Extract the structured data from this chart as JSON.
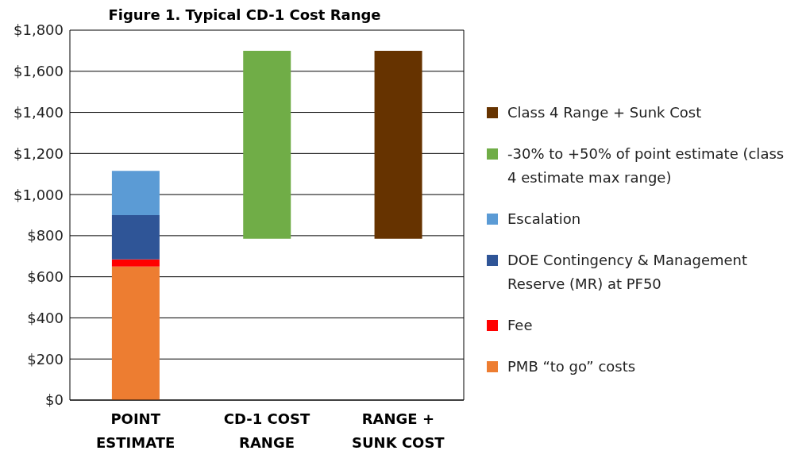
{
  "chart_data": {
    "type": "bar",
    "title": "Figure 1. Typical CD-1 Cost Range",
    "categories": [
      "POINT ESTIMATE",
      "CD-1 COST RANGE",
      "RANGE + SUNK COST"
    ],
    "stacked": true,
    "series": [
      {
        "name": "PMB “to go” costs",
        "color": "#ed7d31",
        "values": [
          650,
          null,
          null
        ]
      },
      {
        "name": "Fee",
        "color": "#ff0000",
        "values": [
          35,
          null,
          null
        ]
      },
      {
        "name": "DOE Contingency & Management Reserve (MR) at PF50",
        "color": "#2f5597",
        "values": [
          215,
          null,
          null
        ]
      },
      {
        "name": "Escalation",
        "color": "#5b9bd5",
        "values": [
          215,
          null,
          null
        ]
      },
      {
        "name": "-30% to +50% of point estimate (class 4 estimate max range)",
        "color": "#70ad47",
        "values": [
          null,
          915,
          null
        ],
        "base": [
          null,
          785,
          null
        ]
      },
      {
        "name": "Class 4 Range + Sunk Cost",
        "color": "#663300",
        "values": [
          null,
          null,
          915
        ],
        "base": [
          null,
          null,
          785
        ]
      }
    ],
    "ylim": [
      0,
      1800
    ],
    "yticks": [
      {
        "value": 0,
        "label": "$0"
      },
      {
        "value": 200,
        "label": "$200"
      },
      {
        "value": 400,
        "label": "$400"
      },
      {
        "value": 600,
        "label": "$600"
      },
      {
        "value": 800,
        "label": "$800"
      },
      {
        "value": 1000,
        "label": "$1,000"
      },
      {
        "value": 1200,
        "label": "$1,200"
      },
      {
        "value": 1400,
        "label": "$1,400"
      },
      {
        "value": 1600,
        "label": "$1,600"
      },
      {
        "value": 1800,
        "label": "$1,800"
      }
    ],
    "grid": "y",
    "legend": "right"
  }
}
